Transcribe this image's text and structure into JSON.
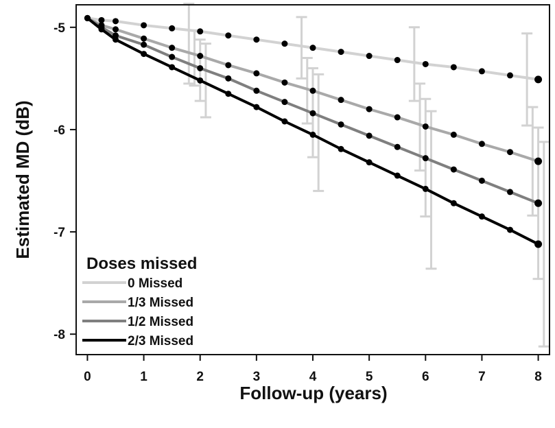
{
  "chart_data": {
    "type": "line",
    "title": "",
    "xlabel": "Follow-up (years)",
    "ylabel": "Estimated MD (dB)",
    "xlim": [
      -0.2,
      8.2
    ],
    "ylim": [
      -8.2,
      -4.78
    ],
    "x_ticks": [
      "0",
      "1",
      "2",
      "3",
      "4",
      "5",
      "6",
      "7",
      "8"
    ],
    "y_ticks": [
      "-5",
      "-6",
      "-7",
      "-8"
    ],
    "legend": {
      "title": "Doses missed",
      "placement": "bottom-left"
    },
    "x": [
      0,
      0.25,
      0.5,
      1,
      1.5,
      2,
      2.5,
      3,
      3.5,
      4,
      4.5,
      5,
      5.5,
      6,
      6.5,
      7,
      7.5,
      8
    ],
    "series": [
      {
        "name": "0 Missed",
        "color": "#d2d2d2",
        "values": [
          -4.91,
          -4.93,
          -4.94,
          -4.98,
          -5.01,
          -5.04,
          -5.08,
          -5.12,
          -5.16,
          -5.2,
          -5.24,
          -5.28,
          -5.32,
          -5.36,
          -5.39,
          -5.43,
          -5.47,
          -5.51
        ]
      },
      {
        "name": "1/3 Missed",
        "color": "#a9a9a9",
        "values": [
          -4.91,
          -4.98,
          -5.02,
          -5.11,
          -5.2,
          -5.28,
          -5.37,
          -5.45,
          -5.54,
          -5.62,
          -5.71,
          -5.8,
          -5.88,
          -5.97,
          -6.05,
          -6.14,
          -6.22,
          -6.31
        ]
      },
      {
        "name": "1/2 Missed",
        "color": "#7f7f7f",
        "values": [
          -4.91,
          -5.0,
          -5.08,
          -5.17,
          -5.29,
          -5.4,
          -5.5,
          -5.62,
          -5.73,
          -5.84,
          -5.95,
          -6.06,
          -6.17,
          -6.28,
          -6.39,
          -6.5,
          -6.61,
          -6.72
        ]
      },
      {
        "name": "2/3 Missed",
        "color": "#000000",
        "values": [
          -4.91,
          -5.02,
          -5.12,
          -5.26,
          -5.39,
          -5.52,
          -5.65,
          -5.78,
          -5.92,
          -6.05,
          -6.19,
          -6.32,
          -6.45,
          -6.58,
          -6.72,
          -6.85,
          -6.98,
          -7.12
        ]
      }
    ],
    "error_bars": [
      {
        "x": 1.8,
        "low": -5.55,
        "high": -4.77
      },
      {
        "x": 1.9,
        "low": -5.57,
        "high": -5.03
      },
      {
        "x": 2.0,
        "low": -5.72,
        "high": -5.12
      },
      {
        "x": 2.1,
        "low": -5.88,
        "high": -5.16
      },
      {
        "x": 3.8,
        "low": -5.5,
        "high": -4.9
      },
      {
        "x": 3.9,
        "low": -5.94,
        "high": -5.3
      },
      {
        "x": 4.0,
        "low": -6.27,
        "high": -5.4
      },
      {
        "x": 4.1,
        "low": -6.6,
        "high": -5.46
      },
      {
        "x": 5.8,
        "low": -5.72,
        "high": -5.0
      },
      {
        "x": 5.9,
        "low": -6.4,
        "high": -5.55
      },
      {
        "x": 6.0,
        "low": -6.85,
        "high": -5.7
      },
      {
        "x": 6.1,
        "low": -7.36,
        "high": -5.82
      },
      {
        "x": 7.8,
        "low": -5.96,
        "high": -5.06
      },
      {
        "x": 7.9,
        "low": -6.84,
        "high": -5.78
      },
      {
        "x": 8.0,
        "low": -7.46,
        "high": -5.98
      },
      {
        "x": 8.1,
        "low": -8.12,
        "high": -6.12
      }
    ]
  }
}
